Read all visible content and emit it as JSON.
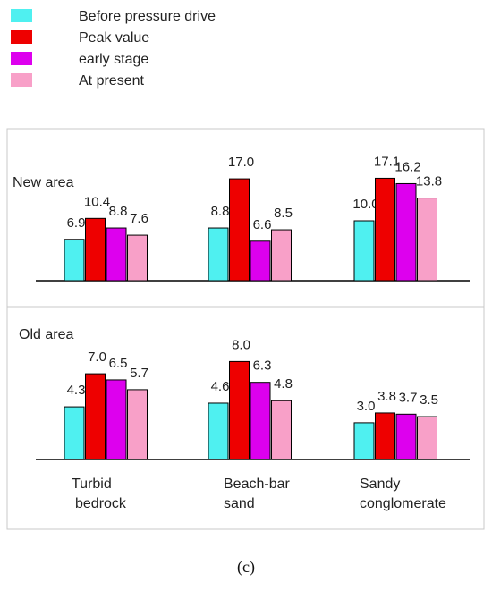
{
  "chart_data": {
    "type": "bar",
    "categories": [
      "Turbid\nbedrock",
      "Beach-bar\nsand",
      "Sandy\nconglomerate"
    ],
    "series": [
      {
        "name": "Before pressure drive",
        "color": "#4ff0f0"
      },
      {
        "name": "Peak value",
        "color": "#ee0000"
      },
      {
        "name": "early stage",
        "color": "#dd00ee"
      },
      {
        "name": "At present",
        "color": "#f8a0c8"
      }
    ],
    "panels": [
      {
        "label": "New area",
        "values": [
          [
            6.9,
            10.4,
            8.8,
            7.6
          ],
          [
            8.8,
            17.0,
            6.6,
            8.5
          ],
          [
            10.0,
            17.1,
            16.2,
            13.8
          ]
        ],
        "value_labels": [
          [
            "6.9",
            "10.4",
            "8.8",
            "7.6"
          ],
          [
            "8.8",
            "17.0",
            "6.6",
            "8.5"
          ],
          [
            "10.0",
            "17.1",
            "16.2",
            "13.8"
          ]
        ]
      },
      {
        "label": "Old area",
        "values": [
          [
            4.3,
            7.0,
            6.5,
            5.7
          ],
          [
            4.6,
            8.0,
            6.3,
            4.8
          ],
          [
            3.0,
            3.8,
            3.7,
            3.5
          ]
        ],
        "value_labels": [
          [
            "4.3",
            "7.0",
            "6.5",
            "5.7"
          ],
          [
            "4.6",
            "8.0",
            "6.3",
            "4.8"
          ],
          [
            "3.0",
            "3.8",
            "3.7",
            "3.5"
          ]
        ]
      }
    ],
    "legend_position": "top-left",
    "caption": "(c)"
  }
}
